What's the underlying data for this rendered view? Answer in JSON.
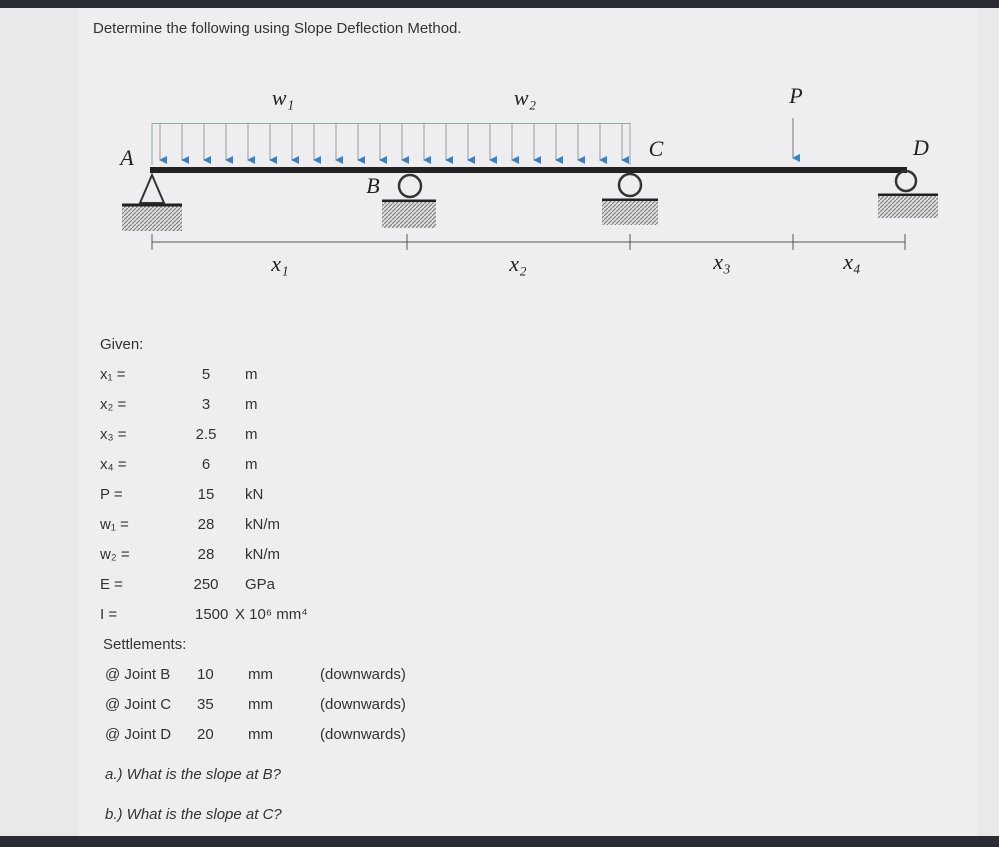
{
  "header": {
    "title": "Determine the following using Slope Deflection Method."
  },
  "diagram": {
    "loads": [
      "w₁",
      "w₂",
      "P"
    ],
    "joints": [
      "A",
      "B",
      "C",
      "D"
    ],
    "spans": [
      "x₁",
      "x₂",
      "x₃",
      "x₄"
    ]
  },
  "given": {
    "heading": "Given:",
    "rows": [
      [
        "x₁ =",
        5,
        "m"
      ],
      [
        "x₂ =",
        3,
        "m"
      ],
      [
        "x₃ =",
        2.5,
        "m"
      ],
      [
        "x₄ =",
        6,
        "m"
      ],
      [
        "P =",
        15,
        "kN"
      ],
      [
        "w₁ =",
        28,
        "kN/m"
      ],
      [
        "w₂ =",
        28,
        "kN/m"
      ],
      [
        "E =",
        250,
        "GPa"
      ],
      [
        "I =",
        1500,
        "X 10⁶ mm⁴"
      ]
    ]
  },
  "settlements": {
    "heading": "Settlements:",
    "rows": [
      [
        "@ Joint B",
        10,
        "mm",
        "(downwards)"
      ],
      [
        "@ Joint C",
        35,
        "mm",
        "(downwards)"
      ],
      [
        "@ Joint D",
        20,
        "mm",
        "(downwards)"
      ]
    ]
  },
  "questions": [
    "a.) What is the slope at B?",
    "b.) What is the slope at C?"
  ]
}
